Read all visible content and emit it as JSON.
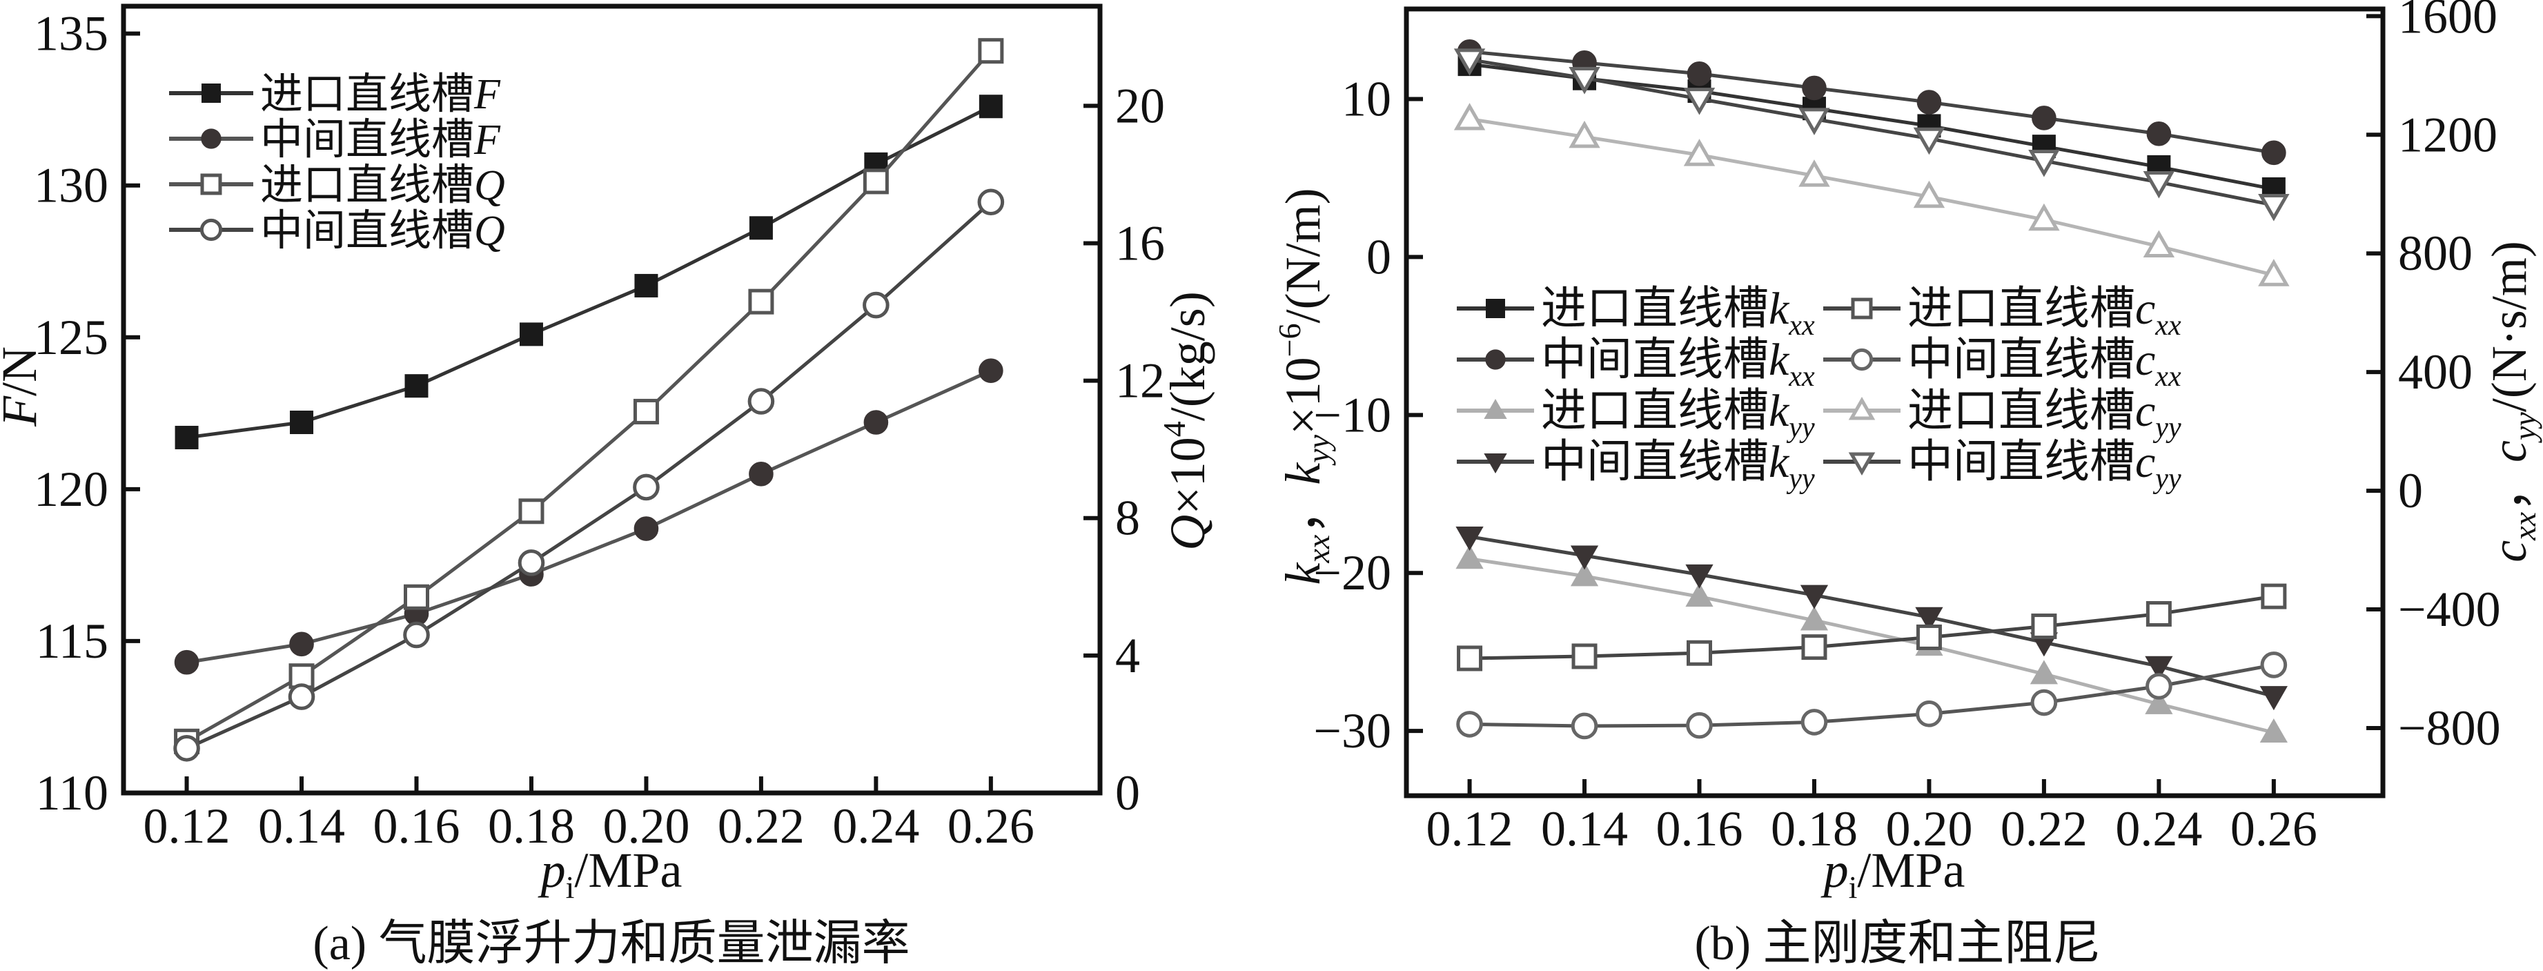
{
  "chart_data": [
    {
      "id": "a",
      "type": "line",
      "caption": "(a) 气膜浮升力和质量泄漏率",
      "xlabel": {
        "var": "p",
        "sub": "i",
        "unit": "/MPa"
      },
      "ylabel_left": {
        "var": "F",
        "unit": "/N"
      },
      "ylabel_right": {
        "var": "Q",
        "mid": "×10",
        "sup": "4",
        "unit": "/(kg/s)"
      },
      "x": [
        0.12,
        0.14,
        0.16,
        0.18,
        0.2,
        0.22,
        0.24,
        0.26
      ],
      "x_ticks": [
        "0.12",
        "0.14",
        "0.16",
        "0.18",
        "0.20",
        "0.22",
        "0.24",
        "0.26"
      ],
      "xlim": [
        0.109,
        0.279
      ],
      "ylim_left": [
        110,
        135.9
      ],
      "ylim_right": [
        0,
        22.9
      ],
      "yticks_left": [
        "110",
        "115",
        "120",
        "125",
        "130",
        "135"
      ],
      "yticks_right": [
        "0",
        "4",
        "8",
        "12",
        "16",
        "20"
      ],
      "grid": false,
      "legend_position": "top-left",
      "series": [
        {
          "name": "进口直线槽",
          "sym": "F",
          "axis": "left",
          "marker": "filled-square",
          "color": "#1a1a1a",
          "line": "#333333",
          "values": [
            121.7,
            122.2,
            123.4,
            125.1,
            126.7,
            128.6,
            130.7,
            132.6
          ]
        },
        {
          "name": "中间直线槽",
          "sym": "F",
          "axis": "left",
          "marker": "filled-circle",
          "color": "#3a3434",
          "line": "#555555",
          "values": [
            114.3,
            114.9,
            115.9,
            117.2,
            118.7,
            120.5,
            122.2,
            123.9
          ]
        },
        {
          "name": "进口直线槽",
          "sym": "Q",
          "axis": "right",
          "marker": "open-square",
          "color": "#555555",
          "line": "#555555",
          "values": [
            1.5,
            3.4,
            5.7,
            8.2,
            11.1,
            14.3,
            17.8,
            21.6
          ]
        },
        {
          "name": "中间直线槽",
          "sym": "Q",
          "axis": "right",
          "marker": "open-circle",
          "color": "#555555",
          "line": "#444444",
          "values": [
            1.3,
            2.8,
            4.6,
            6.7,
            8.9,
            11.4,
            14.2,
            17.2
          ]
        }
      ]
    },
    {
      "id": "b",
      "type": "line",
      "caption": "(b) 主刚度和主阻尼",
      "xlabel": {
        "var": "p",
        "sub": "i",
        "unit": "/MPa"
      },
      "ylabel_left": {
        "text": "k_xx, k_yy ×10⁻⁶/(N/m)",
        "k1": "k",
        "s1": "xx",
        "sep": "，",
        "k2": "k",
        "s2": "yy",
        "mid": "×10",
        "sup": "−6",
        "unit": "/(N/m)"
      },
      "ylabel_right": {
        "text": "c_xx, c_yy /(N·s/m)",
        "c1": "c",
        "s1": "xx",
        "sep": "，",
        "c2": "c",
        "s2": "yy",
        "unit": "/(N·s/m)"
      },
      "x": [
        0.12,
        0.14,
        0.16,
        0.18,
        0.2,
        0.22,
        0.24,
        0.26
      ],
      "x_ticks": [
        "0.12",
        "0.14",
        "0.16",
        "0.18",
        "0.20",
        "0.22",
        "0.24",
        "0.26"
      ],
      "xlim": [
        0.109,
        0.279
      ],
      "ylim_left": [
        -34.1,
        15.7
      ],
      "ylim_right": [
        -1028,
        1624
      ],
      "yticks_left": [
        "10",
        "0",
        "−10",
        "−20",
        "−30"
      ],
      "yticks_left_values": [
        10,
        0,
        -10,
        -20,
        -30
      ],
      "yticks_right": [
        "1600",
        "1200",
        "800",
        "400",
        "0",
        "−400",
        "−800"
      ],
      "yticks_right_values": [
        1600,
        1200,
        800,
        400,
        0,
        -400,
        -800
      ],
      "grid": false,
      "legend_position": "center-left, two columns",
      "series": [
        {
          "name": "进口直线槽",
          "sym": "k",
          "sub": "xx",
          "axis": "left",
          "marker": "filled-square",
          "color": "#1a1a1a",
          "line": "#333333",
          "values": [
            12.2,
            11.3,
            10.5,
            9.4,
            8.3,
            7.0,
            5.7,
            4.3
          ]
        },
        {
          "name": "中间直线槽",
          "sym": "k",
          "sub": "xx",
          "axis": "left",
          "marker": "filled-circle",
          "color": "#3a3434",
          "line": "#444444",
          "values": [
            13.0,
            12.3,
            11.6,
            10.7,
            9.8,
            8.8,
            7.8,
            6.6
          ]
        },
        {
          "name": "进口直线槽",
          "sym": "k",
          "sub": "yy",
          "axis": "left",
          "marker": "filled-triangle-up",
          "color": "#a8a8a8",
          "line": "#b0b0b0",
          "values": [
            -19.1,
            -20.2,
            -21.5,
            -23.0,
            -24.6,
            -26.4,
            -28.3,
            -30.1
          ]
        },
        {
          "name": "中间直线槽",
          "sym": "k",
          "sub": "yy",
          "axis": "left",
          "marker": "filled-triangle-down",
          "color": "#3a3434",
          "line": "#444444",
          "values": [
            -17.7,
            -18.9,
            -20.1,
            -21.4,
            -22.8,
            -24.4,
            -25.9,
            -27.8
          ]
        },
        {
          "name": "进口直线槽",
          "sym": "c",
          "sub": "xx",
          "axis": "right",
          "marker": "open-square",
          "color": "#555555",
          "line": "#444444",
          "values": [
            -565,
            -558,
            -547,
            -527,
            -494,
            -457,
            -415,
            -356
          ]
        },
        {
          "name": "中间直线槽",
          "sym": "c",
          "sub": "xx",
          "axis": "right",
          "marker": "open-circle",
          "color": "#666666",
          "line": "#555555",
          "values": [
            -787,
            -793,
            -791,
            -780,
            -752,
            -714,
            -659,
            -587
          ]
        },
        {
          "name": "进口直线槽",
          "sym": "c",
          "sub": "yy",
          "axis": "right",
          "marker": "open-triangle-up",
          "color": "#b0b0b0",
          "line": "#b5b5b5",
          "values": [
            1253,
            1193,
            1132,
            1062,
            991,
            914,
            824,
            727
          ]
        },
        {
          "name": "中间直线槽",
          "sym": "c",
          "sub": "yy",
          "axis": "right",
          "marker": "open-triangle-down",
          "color": "#666666",
          "line": "#444444",
          "values": [
            1453,
            1391,
            1321,
            1253,
            1187,
            1112,
            1040,
            963
          ]
        }
      ]
    }
  ]
}
